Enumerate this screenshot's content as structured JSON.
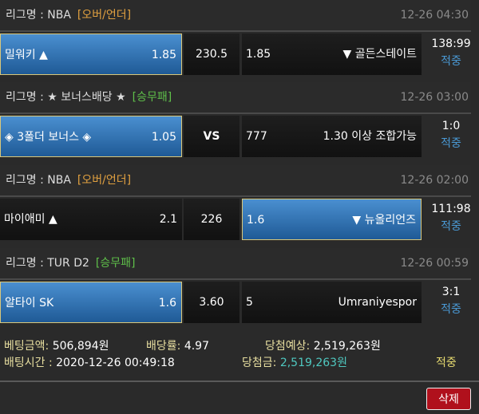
{
  "games": [
    {
      "league_prefix": "리그명 : NBA",
      "tag": "[오버/언더]",
      "tag_color": "#e0a040",
      "time": "12-26 04:30",
      "home": "밀워키 ▲",
      "home_odds": "1.85",
      "mid": "230.5",
      "away_odds": "1.85",
      "away": "▼ 골든스테이트",
      "score": "138:99",
      "result": "적중",
      "selected": "home"
    },
    {
      "league_prefix": "리그명 : ★ 보너스배당 ★",
      "tag": "[승무패]",
      "tag_color": "#5fc04a",
      "time": "12-26 03:00",
      "home": "◈ 3폴더 보너스 ◈",
      "home_odds": "1.05",
      "mid": "VS",
      "away_odds": "777",
      "away": "1.30 이상 조합가능",
      "score": "1:0",
      "result": "적중",
      "selected": "home"
    },
    {
      "league_prefix": "리그명 : NBA",
      "tag": "[오버/언더]",
      "tag_color": "#e0a040",
      "time": "12-26 02:00",
      "home": "마이애미 ▲",
      "home_odds": "2.1",
      "mid": "226",
      "away_odds": "1.6",
      "away": "▼ 뉴올리언즈",
      "score": "111:98",
      "result": "적중",
      "selected": "away"
    },
    {
      "league_prefix": "리그명 : TUR D2",
      "tag": "[승무패]",
      "tag_color": "#5fc04a",
      "time": "12-26 00:59",
      "home": "알타이 SK",
      "home_odds": "1.6",
      "mid": "3.60",
      "away_odds": "5",
      "away": "Umraniyespor",
      "score": "3:1",
      "result": "적중",
      "selected": "home"
    }
  ],
  "summary": {
    "bet_amount_label": "베팅금액:",
    "bet_amount": "506,894원",
    "odds_label": "배당률:",
    "odds": "4.97",
    "expected_label": "당첨예상:",
    "expected": "2,519,263원",
    "bet_time_label": "배팅시간 :",
    "bet_time": "2020-12-26 00:49:18",
    "win_label": "당첨금:",
    "win": "2,519,263원",
    "status": "적중"
  },
  "delete_label": "삭제"
}
